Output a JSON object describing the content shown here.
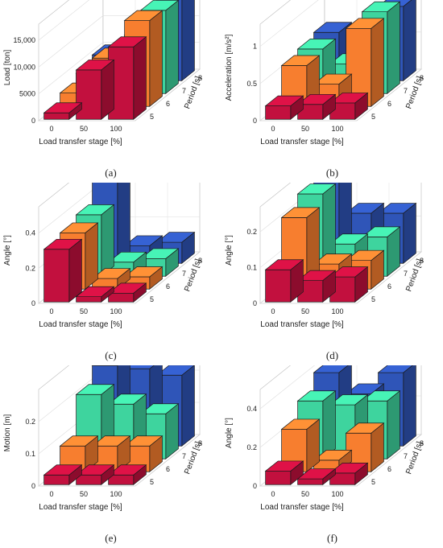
{
  "colors": {
    "5": "#c2103e",
    "6": "#f77e2f",
    "7": "#3ed49e",
    "8": "#2f55b8"
  },
  "chart_data": [
    {
      "type": "bar",
      "caption": "(a)",
      "xlabel": "Load transfer stage [%]",
      "ylabel": "Load [ton]",
      "zlabel": "Period [s]",
      "x_ticks": [
        "0",
        "50",
        "100"
      ],
      "period_ticks": [
        "5",
        "6",
        "7",
        "8"
      ],
      "y_ticks": [
        "0",
        "5000",
        "10,000",
        "15,000"
      ],
      "y_tick_values": [
        0,
        5000,
        10000,
        15000
      ],
      "ylim": [
        0,
        18000
      ],
      "series": [
        {
          "name": "5",
          "values": [
            1200,
            9200,
            13500
          ]
        },
        {
          "name": "6",
          "values": [
            2500,
            9000,
            16000
          ]
        },
        {
          "name": "7",
          "values": [
            3800,
            8000,
            15500
          ]
        },
        {
          "name": "8",
          "values": [
            4800,
            8500,
            16500
          ]
        }
      ]
    },
    {
      "type": "bar",
      "caption": "(b)",
      "xlabel": "Load transfer stage [%]",
      "ylabel": "Acceleration [m/s²]",
      "zlabel": "Period [s]",
      "x_ticks": [
        "0",
        "50",
        "100"
      ],
      "period_ticks": [
        "5",
        "6",
        "7",
        "8"
      ],
      "y_ticks": [
        "0",
        "0.5",
        "1"
      ],
      "y_tick_values": [
        0,
        0.5,
        1
      ],
      "ylim": [
        0,
        1.3
      ],
      "series": [
        {
          "name": "5",
          "values": [
            0.18,
            0.2,
            0.22
          ]
        },
        {
          "name": "6",
          "values": [
            0.55,
            0.3,
            1.05
          ]
        },
        {
          "name": "7",
          "values": [
            0.6,
            0.4,
            1.1
          ]
        },
        {
          "name": "8",
          "values": [
            0.65,
            0.65,
            1.0
          ]
        }
      ]
    },
    {
      "type": "bar",
      "caption": "(c)",
      "xlabel": "Load transfer stage [%]",
      "ylabel": "Angle [°]",
      "zlabel": "Period [s]",
      "x_ticks": [
        "0",
        "50",
        "100"
      ],
      "period_ticks": [
        "5",
        "6",
        "7",
        "8"
      ],
      "y_ticks": [
        "0",
        "0.2",
        "0.4"
      ],
      "y_tick_values": [
        0,
        0.2,
        0.4
      ],
      "ylim": [
        0,
        0.55
      ],
      "series": [
        {
          "name": "5",
          "values": [
            0.3,
            0.03,
            0.05
          ]
        },
        {
          "name": "6",
          "values": [
            0.32,
            0.06,
            0.07
          ]
        },
        {
          "name": "7",
          "values": [
            0.35,
            0.08,
            0.1
          ]
        },
        {
          "name": "8",
          "values": [
            0.5,
            0.1,
            0.12
          ]
        }
      ]
    },
    {
      "type": "bar",
      "caption": "(d)",
      "xlabel": "Load transfer stage [%]",
      "ylabel": "Angle [°]",
      "zlabel": "Period [s]",
      "x_ticks": [
        "0",
        "50",
        "100"
      ],
      "period_ticks": [
        "5",
        "6",
        "7",
        "8"
      ],
      "y_ticks": [
        "0",
        "0.1",
        "0.2"
      ],
      "y_tick_values": [
        0,
        0.1,
        0.2
      ],
      "ylim": [
        0,
        0.27
      ],
      "series": [
        {
          "name": "5",
          "values": [
            0.09,
            0.06,
            0.07
          ]
        },
        {
          "name": "6",
          "values": [
            0.2,
            0.07,
            0.08
          ]
        },
        {
          "name": "7",
          "values": [
            0.23,
            0.09,
            0.11
          ]
        },
        {
          "name": "8",
          "values": [
            0.25,
            0.14,
            0.14
          ]
        }
      ]
    },
    {
      "type": "bar",
      "caption": "(e)",
      "xlabel": "Load transfer stage [%]",
      "ylabel": "Motion [m]",
      "zlabel": "Period [s]",
      "x_ticks": [
        "0",
        "50",
        "100"
      ],
      "period_ticks": [
        "5",
        "6",
        "7",
        "8"
      ],
      "y_ticks": [
        "0",
        "0.1",
        "0.2"
      ],
      "y_tick_values": [
        0,
        0.1,
        0.2
      ],
      "ylim": [
        0,
        0.3
      ],
      "series": [
        {
          "name": "5",
          "values": [
            0.03,
            0.03,
            0.03
          ]
        },
        {
          "name": "6",
          "values": [
            0.08,
            0.08,
            0.08
          ]
        },
        {
          "name": "7",
          "values": [
            0.2,
            0.17,
            0.14
          ]
        },
        {
          "name": "8",
          "values": [
            0.25,
            0.24,
            0.22
          ]
        }
      ]
    },
    {
      "type": "bar",
      "caption": "(f)",
      "xlabel": "Load transfer stage [%]",
      "ylabel": "Angle [°]",
      "zlabel": "Period [s]",
      "x_ticks": [
        "0",
        "50",
        "100"
      ],
      "period_ticks": [
        "5",
        "6",
        "7",
        "8"
      ],
      "y_ticks": [
        "0",
        "0.2",
        "0.4"
      ],
      "y_tick_values": [
        0,
        0.2,
        0.4
      ],
      "ylim": [
        0,
        0.5
      ],
      "series": [
        {
          "name": "5",
          "values": [
            0.07,
            0.03,
            0.06
          ]
        },
        {
          "name": "6",
          "values": [
            0.22,
            0.06,
            0.2
          ]
        },
        {
          "name": "7",
          "values": [
            0.3,
            0.28,
            0.3
          ]
        },
        {
          "name": "8",
          "values": [
            0.38,
            0.27,
            0.38
          ]
        }
      ]
    }
  ]
}
